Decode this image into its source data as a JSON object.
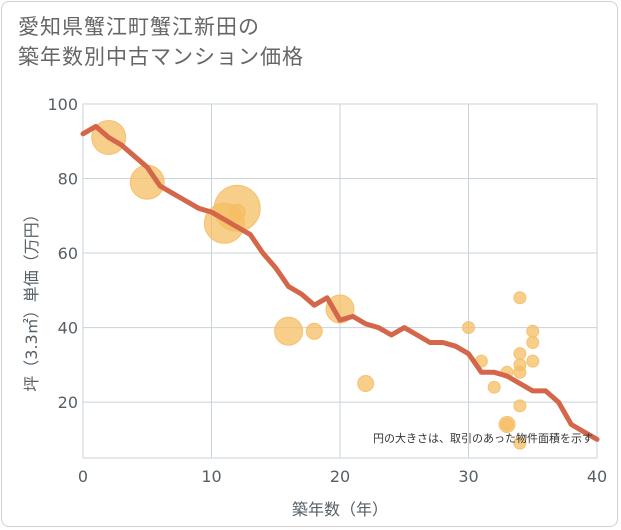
{
  "title_line1": "愛知県蟹江町蟹江新田の",
  "title_line2": "築年数別中古マンション価格",
  "chart_data": {
    "type": "scatter",
    "title": "愛知県蟹江町蟹江新田の築年数別中古マンション価格",
    "xlabel": "築年数（年）",
    "ylabel": "坪（3.3㎡）単価（万円）",
    "xlim": [
      0,
      40
    ],
    "ylim": [
      5,
      100
    ],
    "xticks": [
      0,
      10,
      20,
      30,
      40
    ],
    "yticks": [
      20,
      40,
      60,
      80,
      100
    ],
    "grid": true,
    "note": "円の大きさは、取引のあった物件面積を示す",
    "colors": {
      "bubble": "#f5be64",
      "line": "#d4664a",
      "grid": "#c8d3db",
      "text": "#555f66"
    },
    "points": [
      {
        "x": 2,
        "y": 91,
        "size": 3
      },
      {
        "x": 5,
        "y": 79,
        "size": 3
      },
      {
        "x": 11,
        "y": 68,
        "size": 4
      },
      {
        "x": 12,
        "y": 72,
        "size": 5
      },
      {
        "x": 12,
        "y": 71,
        "size": 1
      },
      {
        "x": 16,
        "y": 39,
        "size": 2
      },
      {
        "x": 18,
        "y": 39,
        "size": 1
      },
      {
        "x": 20,
        "y": 45,
        "size": 2
      },
      {
        "x": 22,
        "y": 25,
        "size": 1
      },
      {
        "x": 30,
        "y": 40,
        "size": 0
      },
      {
        "x": 31,
        "y": 31,
        "size": 0
      },
      {
        "x": 32,
        "y": 24,
        "size": 0
      },
      {
        "x": 33,
        "y": 14,
        "size": 1
      },
      {
        "x": 33,
        "y": 28,
        "size": 0
      },
      {
        "x": 33,
        "y": 14,
        "size": 0
      },
      {
        "x": 34,
        "y": 48,
        "size": 0
      },
      {
        "x": 34,
        "y": 33,
        "size": 0
      },
      {
        "x": 34,
        "y": 30,
        "size": 0
      },
      {
        "x": 34,
        "y": 28,
        "size": 0
      },
      {
        "x": 34,
        "y": 19,
        "size": 0
      },
      {
        "x": 34,
        "y": 9,
        "size": 0
      },
      {
        "x": 35,
        "y": 39,
        "size": 0
      },
      {
        "x": 35,
        "y": 36,
        "size": 0
      },
      {
        "x": 35,
        "y": 31,
        "size": 0
      }
    ],
    "trend": {
      "x": [
        0,
        1,
        2,
        3,
        4,
        5,
        6,
        7,
        8,
        9,
        10,
        11,
        12,
        13,
        14,
        15,
        16,
        17,
        18,
        19,
        20,
        21,
        22,
        23,
        24,
        25,
        26,
        27,
        28,
        29,
        30,
        31,
        32,
        33,
        34,
        35,
        36,
        37,
        38,
        39,
        40
      ],
      "y": [
        92,
        94,
        91,
        89,
        86,
        83,
        78,
        76,
        74,
        72,
        71,
        69,
        67,
        65,
        60,
        56,
        51,
        49,
        46,
        48,
        42,
        43,
        41,
        40,
        38,
        40,
        38,
        36,
        36,
        35,
        33,
        28,
        28,
        27,
        25,
        23,
        23,
        20,
        14,
        12,
        10
      ]
    }
  }
}
